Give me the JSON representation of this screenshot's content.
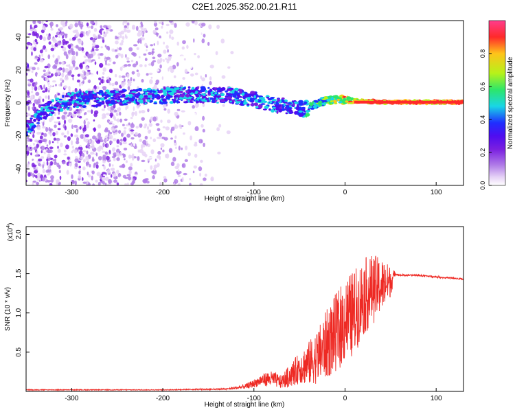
{
  "figure_title": "C2E1.2025.352.00.21.R11",
  "colors": {
    "snr_line": "#ee2a24",
    "frame": "#000000",
    "colormap": [
      "#ffffff",
      "#e6d2f6",
      "#b27fe8",
      "#7a1fe0",
      "#4f0df0",
      "#1f2fff",
      "#19d6e6",
      "#2de66a",
      "#b6f21a",
      "#ffc31a",
      "#ff2a2a"
    ]
  },
  "chart_data": [
    {
      "type": "heatmap",
      "title": "",
      "xlabel": "Height of straight line (km)",
      "ylabel": "Frequency (Hz)",
      "xlim": [
        -350,
        130
      ],
      "ylim": [
        -50,
        50
      ],
      "xticks": [
        -300,
        -200,
        -100,
        0,
        100
      ],
      "yticks": [
        -40,
        -20,
        0,
        20,
        40
      ],
      "ridge_x": [
        -350,
        -330,
        -300,
        -260,
        -220,
        -180,
        -150,
        -120,
        -100,
        -80,
        -60,
        -45,
        -30,
        -15,
        0,
        20,
        50,
        80,
        130
      ],
      "ridge_y": [
        -15,
        -5,
        2,
        3,
        4,
        5,
        5,
        4,
        2,
        -1,
        -2,
        -4,
        0,
        2,
        2,
        1,
        0.5,
        0.5,
        0.5
      ],
      "noise_extent_x": [
        -350,
        -115
      ],
      "colorbar": {
        "label": "Normalized spectral amplitude",
        "range": [
          0,
          1
        ],
        "ticks": [
          "0.0",
          "0.2",
          "0.4",
          "0.6",
          "0.8"
        ]
      }
    },
    {
      "type": "line",
      "title": "",
      "xlabel": "Height of straight line (km)",
      "ylabel": "SNR (10 * v/v)",
      "scale_label": "(x10",
      "scale_exponent": "4",
      "scale_suffix": ")",
      "xlim": [
        -350,
        130
      ],
      "ylim": [
        0,
        2.1
      ],
      "xticks": [
        -300,
        -200,
        -100,
        0,
        100
      ],
      "yticks": [
        "0.5",
        "1.0",
        "1.5",
        "2.0"
      ],
      "units": "x10^4",
      "series": [
        {
          "name": "SNR",
          "x": [
            -350,
            -200,
            -130,
            -110,
            -100,
            -90,
            -80,
            -70,
            -60,
            -50,
            -40,
            -30,
            -20,
            -10,
            0,
            10,
            20,
            30,
            40,
            50,
            55,
            60,
            80,
            90,
            100,
            110,
            120,
            130
          ],
          "y": [
            0.02,
            0.02,
            0.03,
            0.06,
            0.1,
            0.15,
            0.16,
            0.12,
            0.2,
            0.3,
            0.35,
            0.45,
            0.6,
            0.75,
            0.9,
            1.0,
            1.2,
            1.3,
            1.35,
            1.4,
            1.5,
            1.48,
            1.48,
            1.47,
            1.46,
            1.45,
            1.44,
            1.43
          ],
          "spread": [
            0.0,
            0.0,
            0.01,
            0.03,
            0.05,
            0.08,
            0.1,
            0.08,
            0.15,
            0.2,
            0.28,
            0.35,
            0.45,
            0.5,
            0.55,
            0.55,
            0.5,
            0.45,
            0.35,
            0.2,
            0.02,
            0.01,
            0.01,
            0.01,
            0.01,
            0.01,
            0.01,
            0.01
          ]
        }
      ]
    }
  ]
}
